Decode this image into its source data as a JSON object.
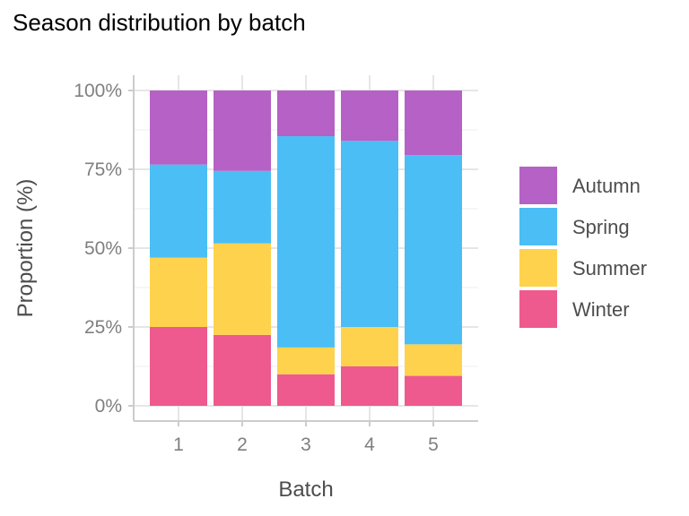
{
  "chart_data": {
    "type": "bar",
    "stacked": true,
    "title": "Season distribution by batch",
    "xlabel": "Batch",
    "ylabel": "Proportion (%)",
    "categories": [
      "1",
      "2",
      "3",
      "4",
      "5"
    ],
    "ylim": [
      0,
      1
    ],
    "yticks": [
      0,
      0.25,
      0.5,
      0.75,
      1.0
    ],
    "ytick_labels": [
      "0%",
      "25%",
      "50%",
      "75%",
      "100%"
    ],
    "grid": true,
    "legend_position": "right",
    "series": [
      {
        "name": "Winter",
        "color": "#EE5A8D",
        "values": [
          0.25,
          0.225,
          0.1,
          0.125,
          0.095
        ]
      },
      {
        "name": "Summer",
        "color": "#FFD24D",
        "values": [
          0.22,
          0.29,
          0.085,
          0.125,
          0.1
        ]
      },
      {
        "name": "Spring",
        "color": "#4BBEF5",
        "values": [
          0.295,
          0.23,
          0.67,
          0.59,
          0.6
        ]
      },
      {
        "name": "Autumn",
        "color": "#B561C5",
        "values": [
          0.235,
          0.255,
          0.145,
          0.16,
          0.205
        ]
      }
    ],
    "legend_order": [
      "Autumn",
      "Spring",
      "Summer",
      "Winter"
    ]
  }
}
